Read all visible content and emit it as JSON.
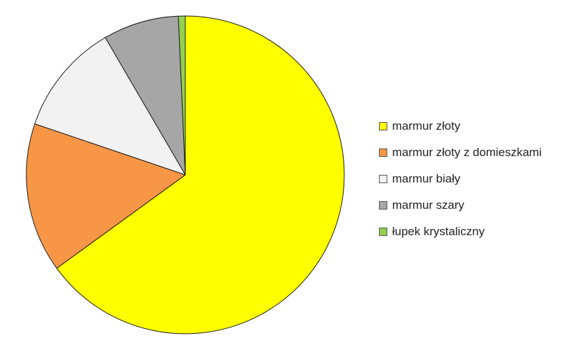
{
  "chart_data": {
    "type": "pie",
    "categories": [
      "marmur złoty",
      "marmur złoty z domieszkami",
      "marmur biały",
      "marmur szary",
      "łupek krystaliczny"
    ],
    "values": [
      65.0,
      15.2,
      11.4,
      7.7,
      0.7
    ],
    "colors": [
      "#FFFF00",
      "#F79646",
      "#F2F2F2",
      "#A6A6A6",
      "#92D050"
    ],
    "start_angle_deg": 0,
    "direction": "clockwise",
    "legend": "right",
    "title": ""
  }
}
